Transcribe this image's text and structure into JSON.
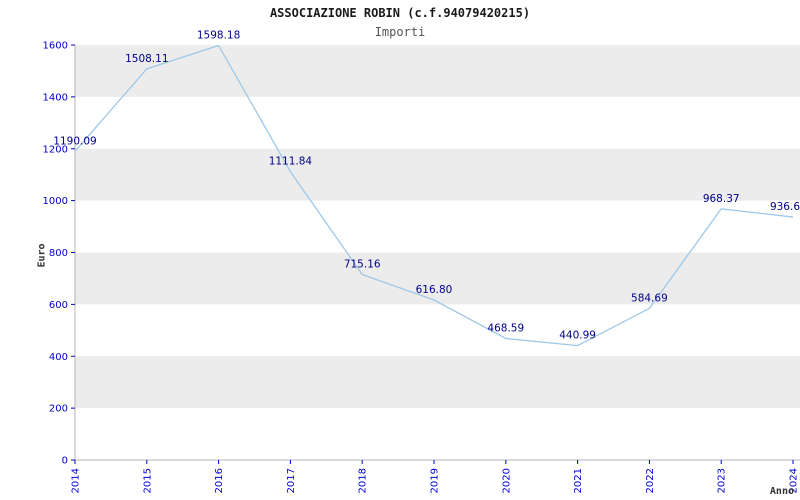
{
  "header": {
    "title": "ASSOCIAZIONE ROBIN (c.f.94079420215)",
    "subtitle": "Importi"
  },
  "chart_data": {
    "type": "line",
    "title": "ASSOCIAZIONE ROBIN (c.f.94079420215)",
    "subtitle": "Importi",
    "xlabel": "Anno",
    "ylabel": "Euro",
    "x": [
      2014,
      2015,
      2016,
      2017,
      2018,
      2019,
      2020,
      2021,
      2022,
      2023,
      2024
    ],
    "values": [
      1190.09,
      1508.11,
      1598.18,
      1111.84,
      715.16,
      616.8,
      468.59,
      440.99,
      584.69,
      968.37,
      936.6
    ],
    "labels": [
      "1190.09",
      "1508.11",
      "1598.18",
      "1111.84",
      "715.16",
      "616.80",
      "468.59",
      "440.99",
      "584.69",
      "968.37",
      "936.6"
    ],
    "ylim": [
      0,
      1600
    ],
    "y_ticks": [
      0,
      200,
      400,
      600,
      800,
      1000,
      1200,
      1400,
      1600
    ],
    "grid": "banded-horizontal",
    "legend": "none",
    "line_color": "#9ec8e8",
    "label_color": "#00008b",
    "tick_color": "#0000cd",
    "band_color": "#ececec",
    "axis_color": "#b4b4b4"
  }
}
